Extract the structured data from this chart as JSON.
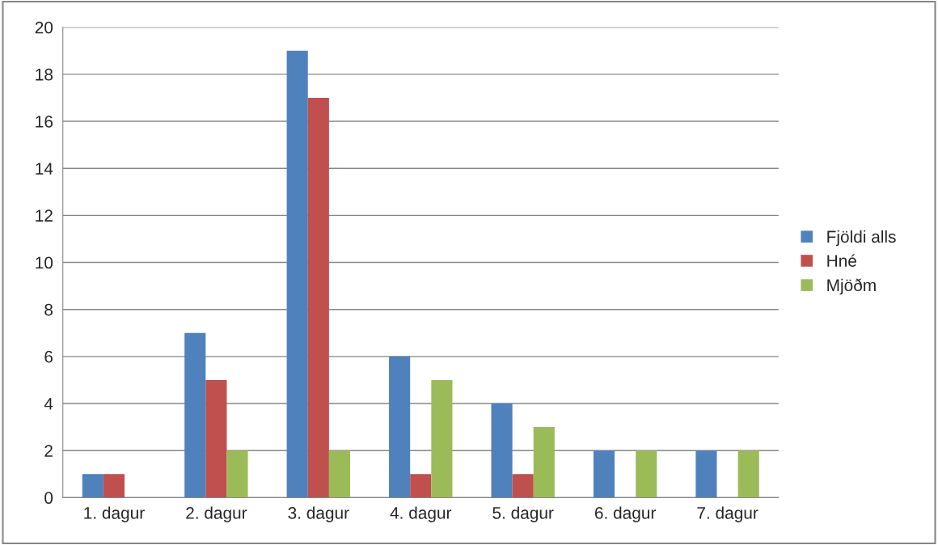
{
  "chart_data": {
    "type": "bar",
    "categories": [
      "1. dagur",
      "2. dagur",
      "3. dagur",
      "4. dagur",
      "5. dagur",
      "6. dagur",
      "7. dagur"
    ],
    "series": [
      {
        "name": "Fjöldi alls",
        "color": "#4f81bd",
        "values": [
          1,
          7,
          19,
          6,
          4,
          2,
          2
        ]
      },
      {
        "name": "Hné",
        "color": "#c0504d",
        "values": [
          1,
          5,
          17,
          1,
          1,
          0,
          0
        ]
      },
      {
        "name": "Mjöðm",
        "color": "#9bbb59",
        "values": [
          0,
          2,
          2,
          5,
          3,
          2,
          2
        ]
      }
    ],
    "ylim": [
      0,
      20
    ],
    "yticks": [
      0,
      2,
      4,
      6,
      8,
      10,
      12,
      14,
      16,
      18,
      20
    ],
    "grid": "y",
    "legend": "right"
  }
}
